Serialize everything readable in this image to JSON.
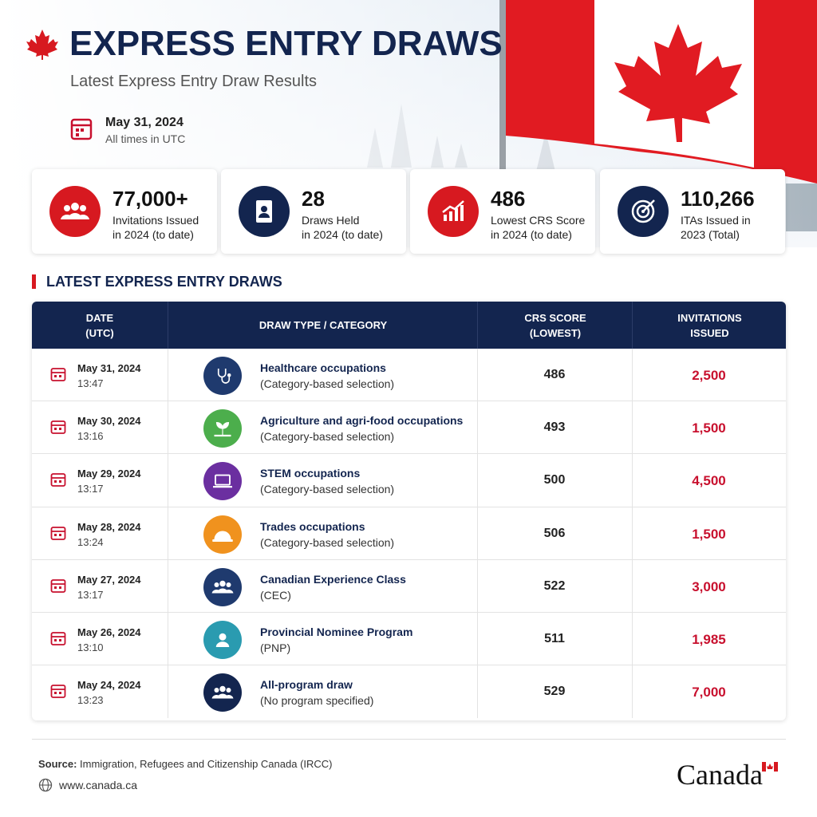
{
  "header": {
    "title": "EXPRESS ENTRY DRAWS",
    "subtitle": "Latest Express Entry Draw Results",
    "date": "May 31, 2024",
    "time_note": "All times in UTC"
  },
  "stats": [
    {
      "value": "77,000+",
      "label": [
        "Invitations Issued",
        "in 2024 (to date)"
      ]
    },
    {
      "value": "28",
      "label": [
        "Draws Held",
        "in 2024 (to date)"
      ]
    },
    {
      "value": "486",
      "label": [
        "Lowest CRS Score",
        "in 2024 (to date)"
      ]
    },
    {
      "value": "110,266",
      "label": [
        "ITAs Issued in",
        "2023 (Total)"
      ]
    }
  ],
  "section_title": "LATEST EXPRESS ENTRY DRAWS",
  "table": {
    "headers": [
      [
        "DATE",
        "(UTC)"
      ],
      [
        "DRAW TYPE / CATEGORY"
      ],
      [
        "CRS SCORE",
        "(LOWEST)"
      ],
      [
        "INVITATIONS",
        "ISSUED"
      ]
    ],
    "rows": [
      {
        "date": "May 31, 2024",
        "time": "13:47",
        "type": "Healthcare occupations",
        "detail": "(Category-based selection)",
        "crs": "486",
        "invitations": "2,500"
      },
      {
        "date": "May 30, 2024",
        "time": "13:16",
        "type": "Agriculture and agri-food occupations",
        "detail": "(Category-based selection)",
        "crs": "493",
        "invitations": "1,500"
      },
      {
        "date": "May 29, 2024",
        "time": "13:17",
        "type": "STEM occupations",
        "detail": "(Category-based selection)",
        "crs": "500",
        "invitations": "4,500"
      },
      {
        "date": "May 28, 2024",
        "time": "13:24",
        "type": "Trades occupations",
        "detail": "(Category-based selection)",
        "crs": "506",
        "invitations": "1,500"
      },
      {
        "date": "May 27, 2024",
        "time": "13:17",
        "type": "Canadian Experience Class",
        "detail": "(CEC)",
        "crs": "522",
        "invitations": "3,000"
      },
      {
        "date": "May 26, 2024",
        "time": "13:10",
        "type": "Provincial Nominee Program",
        "detail": "(PNP)",
        "crs": "511",
        "invitations": "1,985"
      },
      {
        "date": "May 24, 2024",
        "time": "13:23",
        "type": "All-program draw",
        "detail": "(No program specified)",
        "crs": "529",
        "invitations": "7,000"
      }
    ]
  },
  "footer": {
    "source_label": "Source:",
    "source": "Immigration, Refugees and Citizenship Canada (IRCC)",
    "website": "www.canada.ca",
    "wordmark": "Canada"
  }
}
